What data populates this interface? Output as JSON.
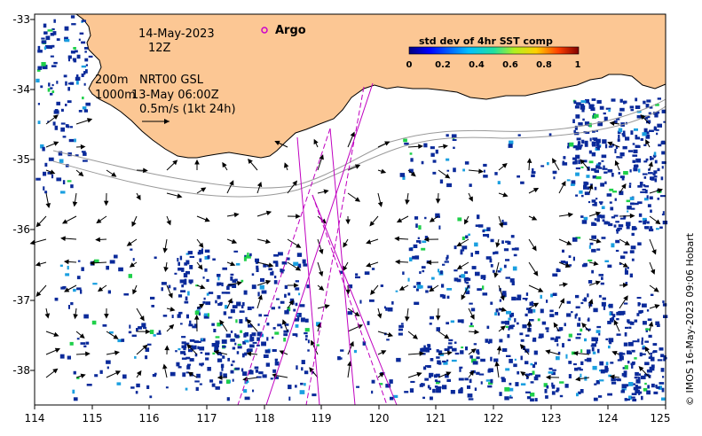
{
  "map": {
    "date": "14-May-2023",
    "hour": "12Z",
    "legend_argo": "Argo",
    "depth_200": "200m",
    "depth_1000": "1000m",
    "model": "NRT00 GSL",
    "model_time": "13-May 06:00Z",
    "scale_text": "0.5m/s (1kt 24h)",
    "credit": "© IMOS 16-May-2023 09:06 Hobart",
    "colors": {
      "land": "#fcc794",
      "argo": "#cc00cc",
      "track": "#c000c0",
      "low_sst": "#0a2a9a",
      "mid_sst": "#1a9fe0",
      "high_sst": "#1fd04a"
    },
    "x_ticks": [
      "114",
      "115",
      "116",
      "117",
      "118",
      "119",
      "120",
      "121",
      "122",
      "123",
      "124",
      "125"
    ],
    "y_ticks": [
      "-33",
      "-34",
      "-35",
      "-36",
      "-37",
      "-38"
    ]
  },
  "colorbar": {
    "title": "std dev of 4hr SST comp",
    "ticks": [
      "0",
      "0.2",
      "0.4",
      "0.6",
      "0.8",
      "1"
    ],
    "range": [
      0,
      1
    ]
  }
}
